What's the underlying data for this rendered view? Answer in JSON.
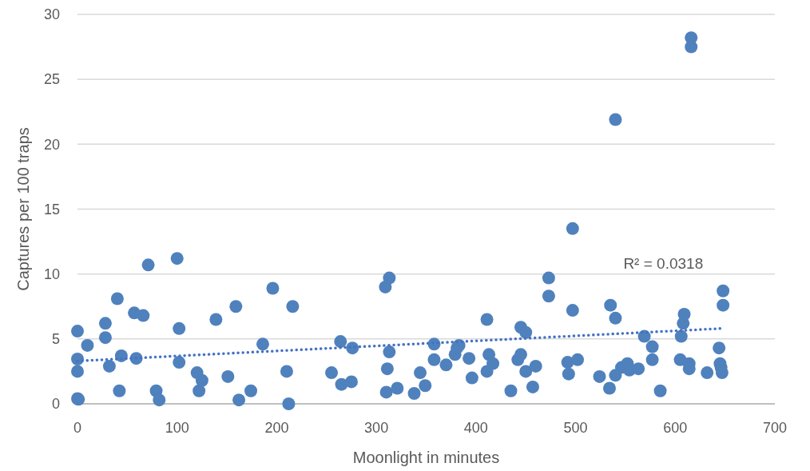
{
  "chart_data": {
    "type": "scatter",
    "xlabel": "Moonlight in minutes",
    "ylabel": "Captures per 100 traps",
    "xlim": [
      0,
      700
    ],
    "xticks": [
      0,
      100,
      200,
      300,
      400,
      500,
      600,
      700
    ],
    "ylim": [
      0,
      30
    ],
    "yticks": [
      0,
      5,
      10,
      15,
      20,
      25,
      30
    ],
    "grid": "y",
    "marker": "circle",
    "annotations": [
      "R² = 0.0318"
    ],
    "series": [
      {
        "color": "#4f81bd",
        "x": [
          0,
          0,
          0,
          0,
          1,
          10,
          28,
          28,
          32,
          40,
          42,
          44,
          57,
          59,
          66,
          71,
          79,
          82,
          100,
          102,
          102,
          120,
          122,
          125,
          139,
          151,
          159,
          162,
          174,
          186,
          196,
          210,
          212,
          216,
          255,
          264,
          265,
          275,
          276,
          309,
          313,
          313,
          311,
          310,
          321,
          338,
          344,
          349,
          358,
          358,
          370,
          379,
          381,
          383,
          393,
          396,
          411,
          413,
          417,
          411,
          435,
          445,
          450,
          445,
          442,
          450,
          457,
          460,
          473,
          473,
          497,
          492,
          493,
          502,
          524,
          534,
          535,
          540,
          540,
          546,
          552,
          554,
          563,
          569,
          577,
          577,
          585,
          605,
          606,
          608,
          609,
          614,
          614,
          632,
          644,
          645,
          646,
          647,
          648,
          648,
          616,
          616,
          540,
          497
        ],
        "values": [
          5.6,
          3.45,
          2.5,
          0.4,
          0.35,
          4.5,
          6.2,
          5.1,
          2.9,
          8.1,
          1.0,
          3.7,
          7.0,
          3.5,
          6.8,
          10.7,
          1.0,
          0.3,
          11.2,
          5.8,
          3.2,
          2.4,
          1.0,
          1.8,
          6.5,
          2.1,
          7.5,
          0.3,
          1.0,
          4.6,
          8.9,
          2.5,
          0,
          7.5,
          2.4,
          4.8,
          1.5,
          1.7,
          4.3,
          9.0,
          9.7,
          4.0,
          2.7,
          0.9,
          1.2,
          0.8,
          2.4,
          1.4,
          4.6,
          3.4,
          3.0,
          3.8,
          4.3,
          4.5,
          3.5,
          2.0,
          6.5,
          3.8,
          3.1,
          2.5,
          1.0,
          5.9,
          5.5,
          3.8,
          3.4,
          2.5,
          1.3,
          2.9,
          9.7,
          8.3,
          7.2,
          3.2,
          2.3,
          3.4,
          2.1,
          1.2,
          7.6,
          6.6,
          2.2,
          2.8,
          3.1,
          2.6,
          2.7,
          5.2,
          4.4,
          3.4,
          1.0,
          3.4,
          5.2,
          6.2,
          6.9,
          3.1,
          2.7,
          2.4,
          4.3,
          3.1,
          2.8,
          2.4,
          8.7,
          7.6,
          28.2,
          27.5,
          21.9,
          13.5
        ]
      },
      {
        "type": "line",
        "color": "#4472c4",
        "line_style": "dotted",
        "marker": "none",
        "x": [
          0,
          645
        ],
        "values": [
          3.3,
          5.8
        ]
      }
    ]
  }
}
